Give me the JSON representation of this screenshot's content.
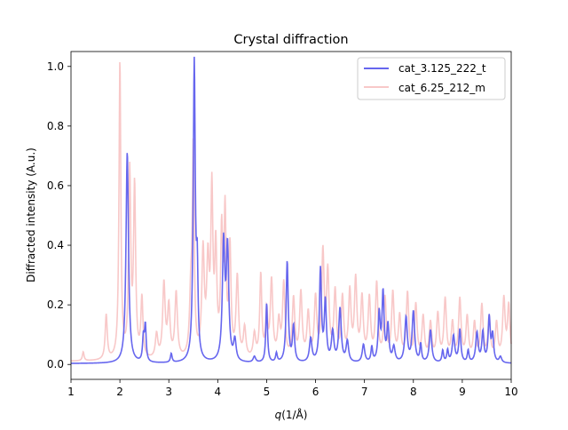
{
  "chart_data": {
    "type": "line",
    "title": "Crystal diffraction",
    "xlabel_var": "q",
    "xlabel_unit": "(1/Å)",
    "ylabel": "Diffracted intensity (A.u.)",
    "xlim": [
      1,
      10
    ],
    "ylim": [
      -0.05,
      1.05
    ],
    "xticks": [
      1,
      2,
      3,
      4,
      5,
      6,
      7,
      8,
      9,
      10
    ],
    "xtick_labels": [
      "1",
      "2",
      "3",
      "4",
      "5",
      "6",
      "7",
      "8",
      "9",
      "10"
    ],
    "yticks": [
      0.0,
      0.2,
      0.4,
      0.6,
      0.8,
      1.0
    ],
    "ytick_labels": [
      "0.0",
      "0.2",
      "0.4",
      "0.6",
      "0.8",
      "1.0"
    ],
    "grid": false,
    "legend_position": "upper right",
    "series": [
      {
        "name": "cat_3.125_222_t",
        "color": "#6666ee",
        "baseline": 0.003,
        "peaks": [
          [
            2.15,
            0.71,
            0.03
          ],
          [
            2.48,
            0.08,
            0.02
          ],
          [
            2.52,
            0.12,
            0.02
          ],
          [
            3.05,
            0.03,
            0.02
          ],
          [
            3.52,
            1.0,
            0.025
          ],
          [
            3.58,
            0.27,
            0.02
          ],
          [
            4.12,
            0.39,
            0.03
          ],
          [
            4.2,
            0.37,
            0.03
          ],
          [
            4.35,
            0.07,
            0.03
          ],
          [
            4.75,
            0.02,
            0.03
          ],
          [
            5.0,
            0.2,
            0.02
          ],
          [
            5.2,
            0.03,
            0.02
          ],
          [
            5.42,
            0.34,
            0.025
          ],
          [
            5.55,
            0.12,
            0.025
          ],
          [
            5.9,
            0.08,
            0.03
          ],
          [
            6.1,
            0.31,
            0.025
          ],
          [
            6.2,
            0.2,
            0.025
          ],
          [
            6.35,
            0.1,
            0.03
          ],
          [
            6.5,
            0.18,
            0.03
          ],
          [
            6.65,
            0.07,
            0.03
          ],
          [
            6.98,
            0.06,
            0.03
          ],
          [
            7.15,
            0.05,
            0.02
          ],
          [
            7.3,
            0.16,
            0.025
          ],
          [
            7.38,
            0.23,
            0.025
          ],
          [
            7.48,
            0.12,
            0.025
          ],
          [
            7.6,
            0.05,
            0.03
          ],
          [
            7.85,
            0.15,
            0.03
          ],
          [
            8.0,
            0.17,
            0.03
          ],
          [
            8.15,
            0.06,
            0.02
          ],
          [
            8.35,
            0.11,
            0.03
          ],
          [
            8.6,
            0.04,
            0.02
          ],
          [
            8.7,
            0.04,
            0.02
          ],
          [
            8.82,
            0.09,
            0.03
          ],
          [
            8.95,
            0.11,
            0.025
          ],
          [
            9.12,
            0.04,
            0.02
          ],
          [
            9.3,
            0.1,
            0.03
          ],
          [
            9.42,
            0.1,
            0.025
          ],
          [
            9.55,
            0.15,
            0.025
          ],
          [
            9.62,
            0.09,
            0.025
          ],
          [
            9.78,
            0.02,
            0.03
          ]
        ]
      },
      {
        "name": "cat_6.25_212_m",
        "color": "#f8c8c8",
        "baseline": 0.01,
        "peaks": [
          [
            1.25,
            0.03,
            0.02
          ],
          [
            1.72,
            0.15,
            0.025
          ],
          [
            2.0,
            1.0,
            0.022
          ],
          [
            2.2,
            0.62,
            0.025
          ],
          [
            2.3,
            0.57,
            0.025
          ],
          [
            2.45,
            0.2,
            0.025
          ],
          [
            2.75,
            0.08,
            0.03
          ],
          [
            2.9,
            0.25,
            0.03
          ],
          [
            3.0,
            0.17,
            0.03
          ],
          [
            3.15,
            0.22,
            0.03
          ],
          [
            3.45,
            0.2,
            0.03
          ],
          [
            3.5,
            0.68,
            0.022
          ],
          [
            3.7,
            0.35,
            0.03
          ],
          [
            3.8,
            0.3,
            0.03
          ],
          [
            3.88,
            0.54,
            0.025
          ],
          [
            3.96,
            0.35,
            0.025
          ],
          [
            4.08,
            0.4,
            0.025
          ],
          [
            4.15,
            0.47,
            0.025
          ],
          [
            4.25,
            0.36,
            0.025
          ],
          [
            4.4,
            0.27,
            0.03
          ],
          [
            4.55,
            0.1,
            0.03
          ],
          [
            4.75,
            0.08,
            0.03
          ],
          [
            4.88,
            0.28,
            0.025
          ],
          [
            5.0,
            0.15,
            0.025
          ],
          [
            5.1,
            0.26,
            0.03
          ],
          [
            5.25,
            0.12,
            0.03
          ],
          [
            5.35,
            0.25,
            0.03
          ],
          [
            5.55,
            0.2,
            0.03
          ],
          [
            5.7,
            0.22,
            0.03
          ],
          [
            5.85,
            0.15,
            0.03
          ],
          [
            6.0,
            0.2,
            0.03
          ],
          [
            6.15,
            0.35,
            0.03
          ],
          [
            6.25,
            0.28,
            0.03
          ],
          [
            6.4,
            0.22,
            0.03
          ],
          [
            6.55,
            0.2,
            0.03
          ],
          [
            6.7,
            0.22,
            0.03
          ],
          [
            6.82,
            0.26,
            0.03
          ],
          [
            6.95,
            0.2,
            0.03
          ],
          [
            7.1,
            0.2,
            0.03
          ],
          [
            7.25,
            0.25,
            0.03
          ],
          [
            7.42,
            0.2,
            0.03
          ],
          [
            7.58,
            0.22,
            0.03
          ],
          [
            7.72,
            0.14,
            0.03
          ],
          [
            7.88,
            0.22,
            0.03
          ],
          [
            8.05,
            0.18,
            0.03
          ],
          [
            8.2,
            0.14,
            0.03
          ],
          [
            8.35,
            0.12,
            0.03
          ],
          [
            8.5,
            0.15,
            0.03
          ],
          [
            8.65,
            0.2,
            0.03
          ],
          [
            8.8,
            0.12,
            0.03
          ],
          [
            8.95,
            0.2,
            0.03
          ],
          [
            9.1,
            0.14,
            0.03
          ],
          [
            9.25,
            0.12,
            0.03
          ],
          [
            9.4,
            0.18,
            0.03
          ],
          [
            9.55,
            0.14,
            0.03
          ],
          [
            9.7,
            0.12,
            0.03
          ],
          [
            9.85,
            0.2,
            0.03
          ],
          [
            9.95,
            0.18,
            0.03
          ]
        ]
      }
    ]
  }
}
